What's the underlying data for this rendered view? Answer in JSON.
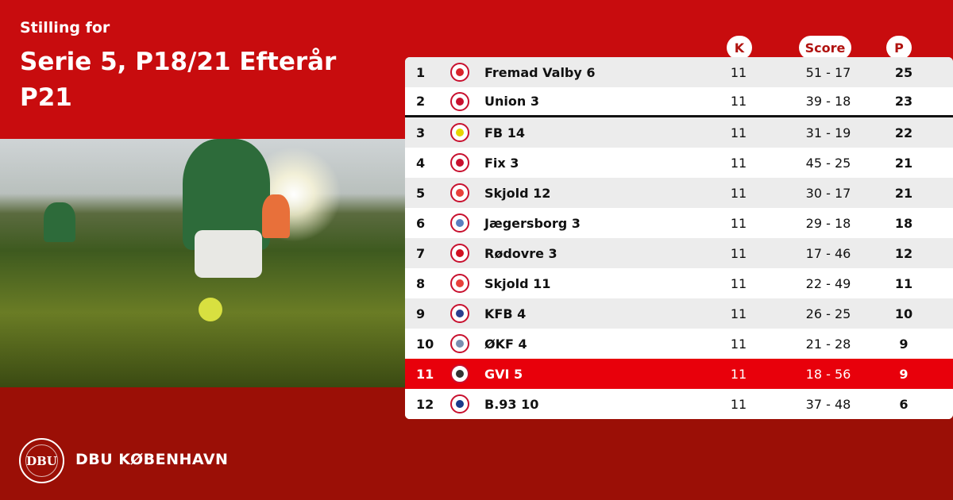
{
  "header": {
    "subtitle": "Stilling for",
    "title": "Serie 5, P18/21 Efterår P21"
  },
  "columns": {
    "k": "K",
    "score": "Score",
    "p": "P"
  },
  "colors": {
    "primary_red": "#c80c0e",
    "dark_red": "#9b0f06",
    "highlight": "#e8000b"
  },
  "rows": [
    {
      "pos": "1",
      "team": "Fremad Valby 6",
      "k": "11",
      "score": "51 - 17",
      "p": "25",
      "logo": "#d8232a"
    },
    {
      "pos": "2",
      "team": "Union 3",
      "k": "11",
      "score": "39 - 18",
      "p": "23",
      "logo": "#c8102e"
    },
    {
      "pos": "3",
      "team": "FB 14",
      "k": "11",
      "score": "31 - 19",
      "p": "22",
      "logo": "#e6d500"
    },
    {
      "pos": "4",
      "team": "Fix 3",
      "k": "11",
      "score": "45 - 25",
      "p": "21",
      "logo": "#c8102e"
    },
    {
      "pos": "5",
      "team": "Skjold 12",
      "k": "11",
      "score": "30 - 17",
      "p": "21",
      "logo": "#e8403a"
    },
    {
      "pos": "6",
      "team": "Jægersborg 3",
      "k": "11",
      "score": "29 - 18",
      "p": "18",
      "logo": "#5a7fc0"
    },
    {
      "pos": "7",
      "team": "Rødovre 3",
      "k": "11",
      "score": "17 - 46",
      "p": "12",
      "logo": "#d01020"
    },
    {
      "pos": "8",
      "team": "Skjold 11",
      "k": "11",
      "score": "22 - 49",
      "p": "11",
      "logo": "#e8403a"
    },
    {
      "pos": "9",
      "team": "KFB 4",
      "k": "11",
      "score": "26 - 25",
      "p": "10",
      "logo": "#2a3f8f"
    },
    {
      "pos": "10",
      "team": "ØKF 4",
      "k": "11",
      "score": "21 - 28",
      "p": "9",
      "logo": "#7a8fb0"
    },
    {
      "pos": "11",
      "team": "GVI 5",
      "k": "11",
      "score": "18 - 56",
      "p": "9",
      "logo": "#333333"
    },
    {
      "pos": "12",
      "team": "B.93 10",
      "k": "11",
      "score": "37 - 48",
      "p": "6",
      "logo": "#1a3a8a"
    }
  ],
  "footer": {
    "brand": "DBU KØBENHAVN",
    "emblem": "DBU"
  }
}
